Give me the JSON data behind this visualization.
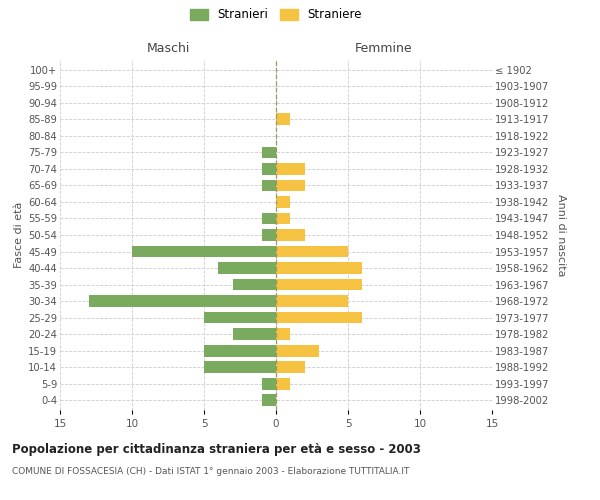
{
  "age_groups": [
    "0-4",
    "5-9",
    "10-14",
    "15-19",
    "20-24",
    "25-29",
    "30-34",
    "35-39",
    "40-44",
    "45-49",
    "50-54",
    "55-59",
    "60-64",
    "65-69",
    "70-74",
    "75-79",
    "80-84",
    "85-89",
    "90-94",
    "95-99",
    "100+"
  ],
  "birth_years": [
    "1998-2002",
    "1993-1997",
    "1988-1992",
    "1983-1987",
    "1978-1982",
    "1973-1977",
    "1968-1972",
    "1963-1967",
    "1958-1962",
    "1953-1957",
    "1948-1952",
    "1943-1947",
    "1938-1942",
    "1933-1937",
    "1928-1932",
    "1923-1927",
    "1918-1922",
    "1913-1917",
    "1908-1912",
    "1903-1907",
    "≤ 1902"
  ],
  "males": [
    1,
    1,
    5,
    5,
    3,
    5,
    13,
    3,
    4,
    10,
    1,
    1,
    0,
    1,
    1,
    1,
    0,
    0,
    0,
    0,
    0
  ],
  "females": [
    0,
    1,
    2,
    3,
    1,
    6,
    5,
    6,
    6,
    5,
    2,
    1,
    1,
    2,
    2,
    0,
    0,
    1,
    0,
    0,
    0
  ],
  "male_color": "#7aaa5e",
  "female_color": "#f5c242",
  "background_color": "#ffffff",
  "grid_color": "#cccccc",
  "title": "Popolazione per cittadinanza straniera per età e sesso - 2003",
  "subtitle": "COMUNE DI FOSSACESIA (CH) - Dati ISTAT 1° gennaio 2003 - Elaborazione TUTTITALIA.IT",
  "xlabel_left": "Maschi",
  "xlabel_right": "Femmine",
  "ylabel_left": "Fasce di età",
  "ylabel_right": "Anni di nascita",
  "xlim": 15,
  "legend_stranieri": "Stranieri",
  "legend_straniere": "Straniere"
}
